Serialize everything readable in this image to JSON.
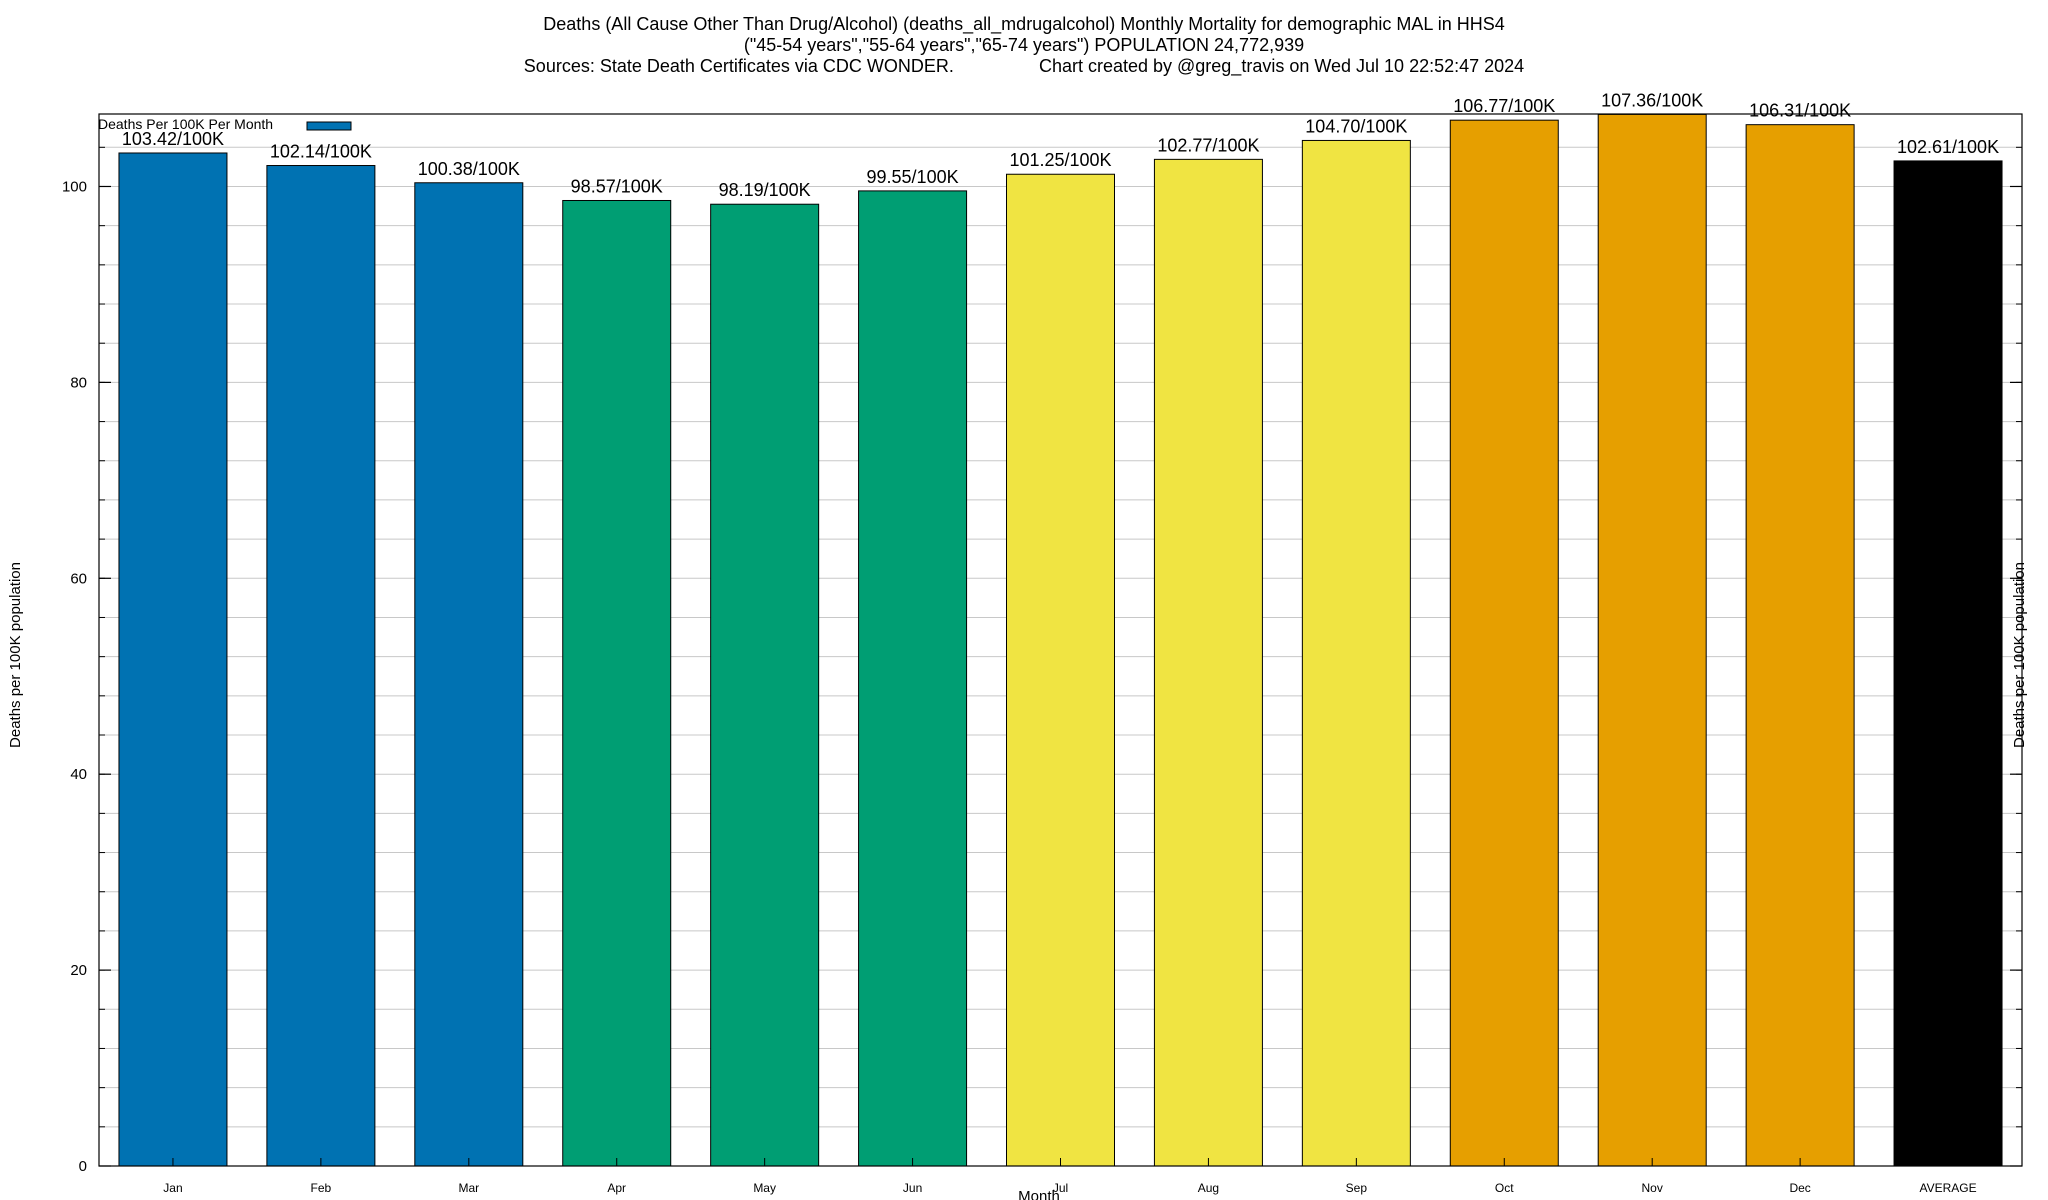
{
  "chart_data": {
    "type": "bar",
    "title_lines": [
      "Deaths (All Cause Other Than Drug/Alcohol) (deaths_all_mdrugalcohol) Monthly Mortality for demographic MAL in HHS4",
      "(\"45-54 years\",\"55-64 years\",\"65-74 years\") POPULATION 24,772,939",
      "Sources: State Death Certificates via CDC WONDER.                 Chart created by @greg_travis on Wed Jul 10 22:52:47 2024"
    ],
    "xlabel": "Month",
    "ylabel": "Deaths per 100K population",
    "ylabel_right": "Deaths per 100K population",
    "ylim": [
      0,
      107.4
    ],
    "yticks": [
      0,
      20,
      40,
      60,
      80,
      100
    ],
    "grid": true,
    "legend": {
      "label": "Deaths Per 100K Per Month",
      "color": "#0072b2",
      "position": "top-left"
    },
    "categories": [
      "Jan",
      "Feb",
      "Mar",
      "Apr",
      "May",
      "Jun",
      "Jul",
      "Aug",
      "Sep",
      "Oct",
      "Nov",
      "Dec",
      "AVERAGE"
    ],
    "values": [
      103.42,
      102.14,
      100.38,
      98.57,
      98.19,
      99.55,
      101.25,
      102.77,
      104.7,
      106.77,
      107.36,
      106.31,
      102.61
    ],
    "data_labels": [
      "103.42/100K",
      "102.14/100K",
      "100.38/100K",
      "98.57/100K",
      "98.19/100K",
      "99.55/100K",
      "101.25/100K",
      "102.77/100K",
      "104.70/100K",
      "106.77/100K",
      "107.36/100K",
      "106.31/100K",
      "102.61/100K"
    ],
    "colors": [
      "#0072b2",
      "#0072b2",
      "#0072b2",
      "#009e73",
      "#009e73",
      "#009e73",
      "#f0e442",
      "#f0e442",
      "#f0e442",
      "#e69f00",
      "#e69f00",
      "#e69f00",
      "#000000"
    ]
  }
}
